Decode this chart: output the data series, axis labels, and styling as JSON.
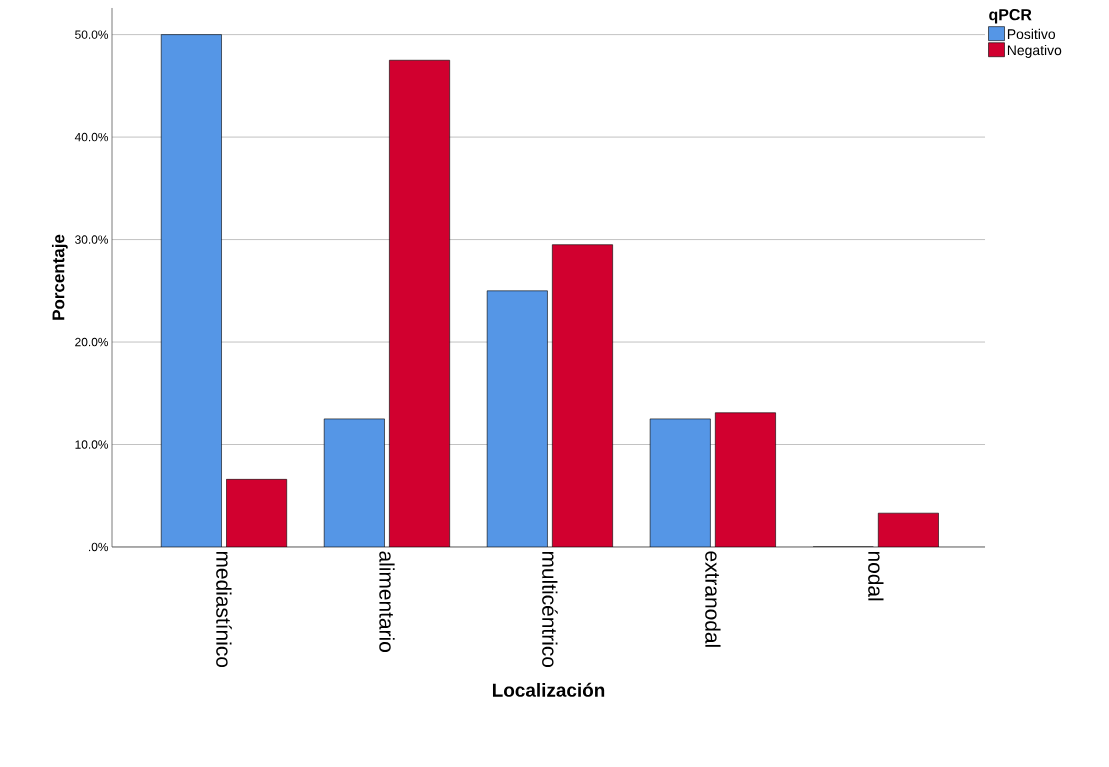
{
  "chart_data": {
    "type": "bar",
    "xlabel": "Localización",
    "ylabel": "Porcentaje",
    "legend_title": "qPCR",
    "categories": [
      "mediastínico",
      "alimentario",
      "multicéntrico",
      "extranodal",
      "nodal"
    ],
    "series": [
      {
        "name": "Positivo",
        "color": "#5596e6",
        "values": [
          50,
          12.5,
          25,
          12.5,
          0
        ]
      },
      {
        "name": "Negativo",
        "color": "#d1002f",
        "values": [
          6.6,
          47.5,
          29.5,
          13.1,
          3.3
        ]
      }
    ],
    "ylim": [
      0,
      52.6
    ],
    "yticks": [
      {
        "value": 0,
        "label": ".0%"
      },
      {
        "value": 10,
        "label": "10.0%"
      },
      {
        "value": 20,
        "label": "20.0%"
      },
      {
        "value": 30,
        "label": "30.0%"
      },
      {
        "value": 40,
        "label": "40.0%"
      },
      {
        "value": 50,
        "label": "50.0%"
      }
    ],
    "grid": "y",
    "legend": "top right"
  }
}
